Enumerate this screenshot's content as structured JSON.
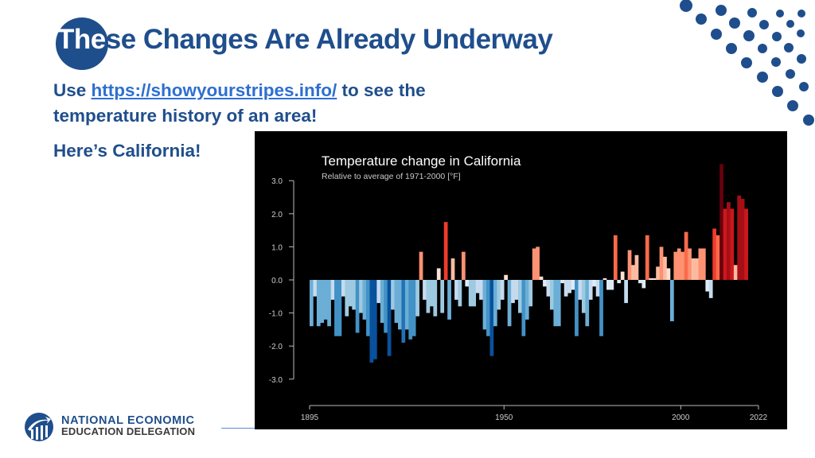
{
  "slide": {
    "title_highlight": "The",
    "title_rest": "se Changes Are Already Underway",
    "body": {
      "line1_prefix": "Use ",
      "link_text": "https://showyourstripes.info/",
      "line1_suffix": " to see the temperature history of an area!",
      "line2": "Here’s California!"
    },
    "colors": {
      "brand_blue": "#1f4e8c",
      "link_blue": "#2e6fd0"
    }
  },
  "logo": {
    "line1": "NATIONAL ECONOMIC",
    "line2": "EDUCATION DELEGATION"
  },
  "chart_data": {
    "type": "bar",
    "title": "Temperature change in California",
    "subtitle": "Relative to average of 1971-2000  [°F]",
    "xlabel": "",
    "ylabel": "",
    "x_start": 1895,
    "x_end": 2022,
    "x_ticks": [
      "1895",
      "1950",
      "2000",
      "2022"
    ],
    "y_ticks": [
      "3.0",
      "2.0",
      "1.0",
      "0.0",
      "-1.0",
      "-2.0",
      "-3.0"
    ],
    "ylim": [
      -3.0,
      3.5
    ],
    "grid": false,
    "legend": "none",
    "background": "#000000",
    "values": [
      -1.4,
      -0.5,
      -1.4,
      -1.3,
      -1.2,
      -1.4,
      -0.6,
      -1.7,
      -1.7,
      -0.5,
      -1.1,
      -0.8,
      -0.9,
      -1.6,
      -1.0,
      -1.2,
      -1.7,
      -2.5,
      -2.4,
      -0.7,
      -1.3,
      -1.6,
      -2.3,
      -0.9,
      -1.3,
      -1.5,
      -1.9,
      -1.5,
      -1.8,
      -1.7,
      -1.1,
      0.85,
      -0.6,
      -1.0,
      -0.8,
      -1.1,
      0.35,
      -1.0,
      1.75,
      -1.2,
      0.65,
      -0.6,
      -0.8,
      0.85,
      -0.2,
      -0.8,
      -0.8,
      -0.4,
      -0.6,
      -1.5,
      -1.7,
      -2.3,
      -1.4,
      -0.9,
      -0.6,
      0.15,
      -1.4,
      -0.7,
      -0.6,
      -1.0,
      -1.7,
      -1.2,
      -0.8,
      0.95,
      1.0,
      0.1,
      -0.2,
      -0.5,
      -0.9,
      -1.4,
      -1.4,
      -0.1,
      -0.5,
      -0.4,
      -0.3,
      -1.7,
      -0.6,
      -1.0,
      -1.4,
      -0.6,
      -0.2,
      -0.5,
      -1.7,
      0.05,
      -0.3,
      -0.3,
      1.35,
      -0.1,
      0.25,
      -0.7,
      0.9,
      0.45,
      0.75,
      -0.1,
      -0.25,
      1.35,
      0.05,
      0.05,
      0.4,
      1.0,
      0.7,
      0.35,
      -1.25,
      0.85,
      0.95,
      0.85,
      1.45,
      0.95,
      0.65,
      0.65,
      0.95,
      0.95,
      -0.35,
      -0.55,
      1.55,
      1.35,
      3.5,
      2.15,
      2.35,
      2.15,
      0.45,
      2.55,
      2.45,
      2.15
    ]
  }
}
